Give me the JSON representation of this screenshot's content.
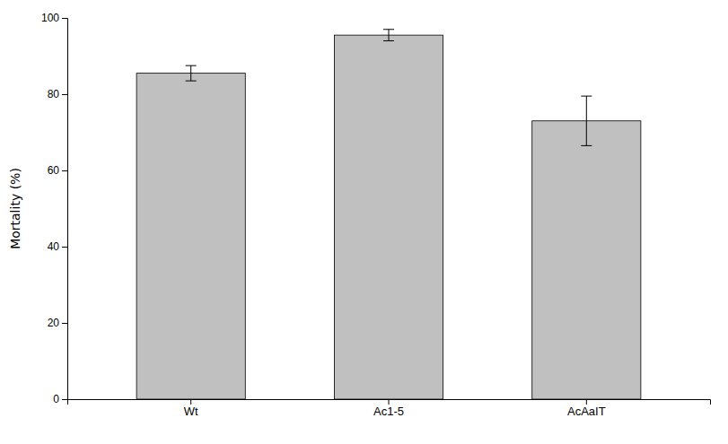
{
  "chart_data": {
    "type": "bar",
    "categories": [
      "Wt",
      "Ac1-5",
      "AcAaIT"
    ],
    "values": [
      85.5,
      95.5,
      73.0
    ],
    "errors": [
      2.0,
      1.5,
      6.5
    ],
    "color": "#c0c0c0",
    "ylabel": "Mortality (%)",
    "ylim": [
      0,
      100
    ],
    "yticks": [
      0,
      20,
      40,
      60,
      80,
      100
    ],
    "grid": false
  }
}
